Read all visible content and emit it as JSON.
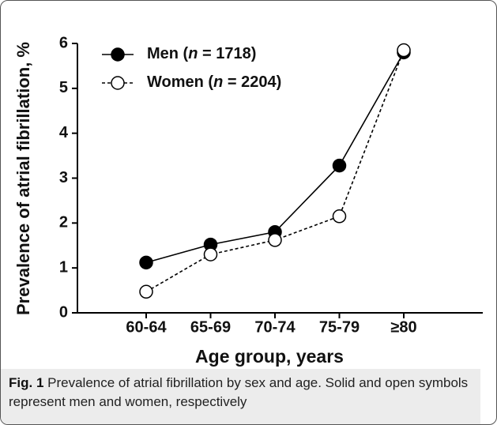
{
  "chart_data": {
    "type": "line",
    "xlabel": "Age group, years",
    "ylabel": "Prevalence of atrial fibrillation, %",
    "categories": [
      "60-64",
      "65-69",
      "70-74",
      "75-79",
      "≥80"
    ],
    "series": [
      {
        "name": "Men (n = 1718)",
        "color": "#000000",
        "marker": "filled",
        "dash": false,
        "values": [
          1.12,
          1.52,
          1.8,
          3.28,
          5.8
        ]
      },
      {
        "name": "Women (n = 2204)",
        "color": "#000000",
        "marker": "open",
        "dash": true,
        "values": [
          0.47,
          1.3,
          1.62,
          2.15,
          5.85
        ]
      }
    ],
    "ylim": [
      0,
      6
    ],
    "yticks": [
      0,
      1,
      2,
      3,
      4,
      5,
      6
    ],
    "grid": false,
    "legend": "top-left"
  },
  "caption": {
    "label": "Fig. 1",
    "text": "Prevalence of atrial fibrillation by sex and age. Solid and open symbols represent men and women, respectively"
  }
}
